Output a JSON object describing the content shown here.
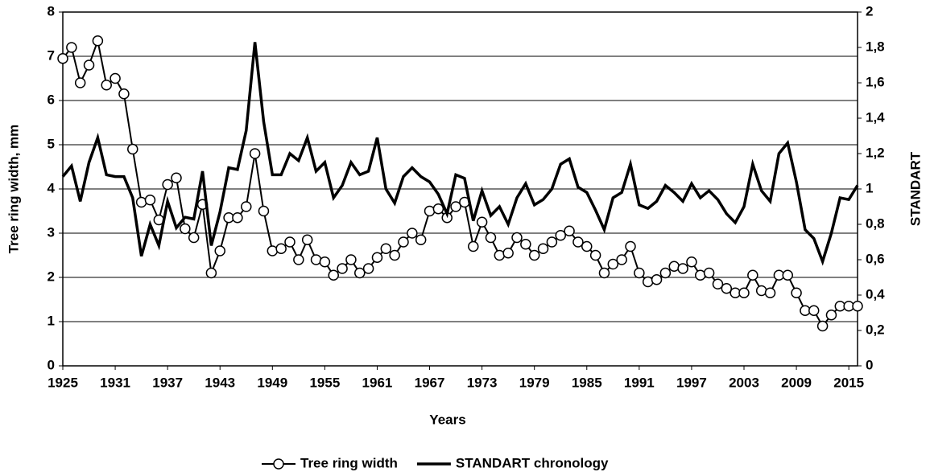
{
  "chart_data": {
    "type": "line",
    "x_label": "Years",
    "y_label": "Tree ring width, mm",
    "y2_label": "STANDART",
    "x": [
      1925,
      1926,
      1927,
      1928,
      1929,
      1930,
      1931,
      1932,
      1933,
      1934,
      1935,
      1936,
      1937,
      1938,
      1939,
      1940,
      1941,
      1942,
      1943,
      1944,
      1945,
      1946,
      1947,
      1948,
      1949,
      1950,
      1951,
      1952,
      1953,
      1954,
      1955,
      1956,
      1957,
      1958,
      1959,
      1960,
      1961,
      1962,
      1963,
      1964,
      1965,
      1966,
      1967,
      1968,
      1969,
      1970,
      1971,
      1972,
      1973,
      1974,
      1975,
      1976,
      1977,
      1978,
      1979,
      1980,
      1981,
      1982,
      1983,
      1984,
      1985,
      1986,
      1987,
      1988,
      1989,
      1990,
      1991,
      1992,
      1993,
      1994,
      1995,
      1996,
      1997,
      1998,
      1999,
      2000,
      2001,
      2002,
      2003,
      2004,
      2005,
      2006,
      2007,
      2008,
      2009,
      2010,
      2011,
      2012,
      2013,
      2014,
      2015,
      2016
    ],
    "series": [
      {
        "name": "Tree ring width",
        "color": "#000000",
        "marker": "circle",
        "values": [
          6.95,
          7.2,
          6.4,
          6.8,
          7.35,
          6.35,
          6.5,
          6.15,
          4.9,
          3.7,
          3.75,
          3.3,
          4.1,
          4.25,
          3.1,
          2.9,
          3.65,
          2.1,
          2.6,
          3.35,
          3.35,
          3.6,
          4.8,
          3.5,
          2.6,
          2.65,
          2.8,
          2.4,
          2.85,
          2.4,
          2.35,
          2.05,
          2.2,
          2.4,
          2.1,
          2.2,
          2.45,
          2.65,
          2.5,
          2.8,
          3.0,
          2.85,
          3.5,
          3.55,
          3.35,
          3.6,
          3.7,
          2.7,
          3.25,
          2.9,
          2.5,
          2.55,
          2.9,
          2.75,
          2.5,
          2.65,
          2.8,
          2.95,
          3.05,
          2.8,
          2.7,
          2.5,
          2.1,
          2.3,
          2.4,
          2.7,
          2.1,
          1.9,
          1.95,
          2.1,
          2.25,
          2.2,
          2.35,
          2.05,
          2.1,
          1.85,
          1.75,
          1.65,
          1.65,
          2.05,
          1.7,
          1.65,
          2.05,
          2.05,
          1.65,
          1.25,
          1.25,
          0.9,
          1.15,
          1.35,
          1.35,
          1.35
        ]
      },
      {
        "name": "STANDART chronology",
        "color": "#000000",
        "axis": "y2",
        "values": [
          1.07,
          1.13,
          0.93,
          1.15,
          1.29,
          1.08,
          1.07,
          1.07,
          0.95,
          0.62,
          0.8,
          0.68,
          0.93,
          0.78,
          0.84,
          0.83,
          1.1,
          0.68,
          0.87,
          1.12,
          1.11,
          1.33,
          1.83,
          1.38,
          1.08,
          1.08,
          1.2,
          1.16,
          1.29,
          1.1,
          1.15,
          0.95,
          1.02,
          1.15,
          1.08,
          1.1,
          1.29,
          1.0,
          0.92,
          1.07,
          1.12,
          1.07,
          1.04,
          0.97,
          0.86,
          1.08,
          1.06,
          0.82,
          0.99,
          0.85,
          0.9,
          0.8,
          0.95,
          1.03,
          0.91,
          0.94,
          1.0,
          1.14,
          1.17,
          1.01,
          0.98,
          0.88,
          0.77,
          0.95,
          0.98,
          1.14,
          0.91,
          0.89,
          0.93,
          1.02,
          0.98,
          0.93,
          1.03,
          0.95,
          0.99,
          0.94,
          0.86,
          0.81,
          0.9,
          1.14,
          0.99,
          0.93,
          1.2,
          1.26,
          1.04,
          0.77,
          0.72,
          0.59,
          0.75,
          0.95,
          0.94,
          1.02
        ]
      }
    ],
    "xlim": [
      1925,
      2016
    ],
    "xticks": [
      1925,
      1931,
      1937,
      1943,
      1949,
      1955,
      1961,
      1967,
      1973,
      1979,
      1985,
      1991,
      1997,
      2003,
      2009,
      2015
    ],
    "ylim": [
      0,
      8
    ],
    "yticks": [
      0,
      1,
      2,
      3,
      4,
      5,
      6,
      7,
      8
    ],
    "y2lim": [
      0,
      2
    ],
    "y2ticks": [
      0,
      {
        "value": 0.2,
        "label": "0,2"
      },
      {
        "value": 0.4,
        "label": "0,4"
      },
      {
        "value": 0.6,
        "label": "0,6"
      },
      {
        "value": 0.8,
        "label": "0,8"
      },
      1,
      {
        "value": 1.2,
        "label": "1,2"
      },
      {
        "value": 1.4,
        "label": "1,4"
      },
      {
        "value": 1.6,
        "label": "1,6"
      },
      {
        "value": 1.8,
        "label": "1,8"
      },
      2
    ],
    "grid": true,
    "legend": "bottom"
  }
}
